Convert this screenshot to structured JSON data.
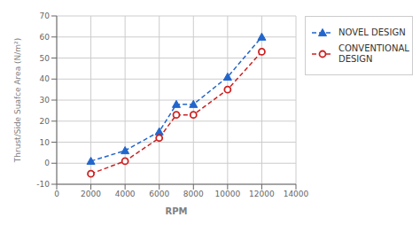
{
  "chart_data": {
    "type": "line",
    "x": [
      2000,
      4000,
      6000,
      7000,
      8000,
      10000,
      12000
    ],
    "series": [
      {
        "name": "NOVEL DESIGN",
        "color": "#2266cc",
        "values": [
          1,
          6,
          15,
          28,
          28,
          41,
          60
        ],
        "marker": "triangle",
        "line_style": "dashed"
      },
      {
        "name": "CONVENTIONAL\nDESIGN",
        "color": "#cc2222",
        "values": [
          -5,
          1,
          12,
          23,
          23,
          35,
          53
        ],
        "marker": "circle",
        "line_style": "dashed"
      }
    ],
    "xlabel": "RPM",
    "ylabel": "Thrust/Side Suafce Area (N/m²)",
    "xlim": [
      0,
      14000
    ],
    "ylim": [
      -10,
      70
    ],
    "xticks": [
      0,
      2000,
      4000,
      6000,
      8000,
      10000,
      12000,
      14000
    ],
    "yticks": [
      -10,
      0,
      10,
      20,
      30,
      40,
      50,
      60,
      70
    ],
    "grid": true,
    "legend": "right"
  }
}
